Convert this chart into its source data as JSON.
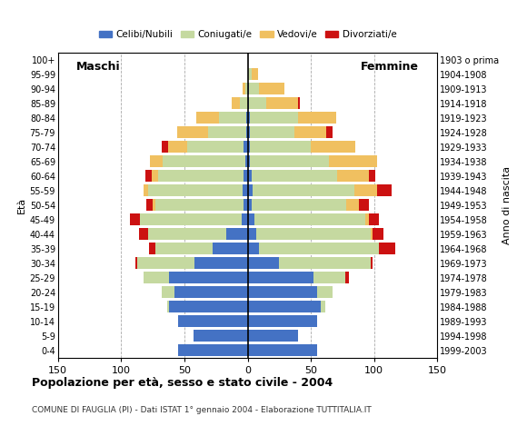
{
  "age_groups": [
    "0-4",
    "5-9",
    "10-14",
    "15-19",
    "20-24",
    "25-29",
    "30-34",
    "35-39",
    "40-44",
    "45-49",
    "50-54",
    "55-59",
    "60-64",
    "65-69",
    "70-74",
    "75-79",
    "80-84",
    "85-89",
    "90-94",
    "95-99",
    "100+"
  ],
  "birth_years": [
    "1999-2003",
    "1994-1998",
    "1989-1993",
    "1984-1988",
    "1979-1983",
    "1974-1978",
    "1969-1973",
    "1964-1968",
    "1959-1963",
    "1954-1958",
    "1949-1953",
    "1944-1948",
    "1939-1943",
    "1934-1938",
    "1929-1933",
    "1924-1928",
    "1919-1923",
    "1914-1918",
    "1909-1913",
    "1904-1908",
    "1903 o prima"
  ],
  "male_celibinubili": [
    55,
    43,
    55,
    62,
    58,
    62,
    42,
    28,
    17,
    5,
    3,
    4,
    3,
    2,
    3,
    1,
    1,
    0,
    0,
    0,
    0
  ],
  "male_coniugati": [
    0,
    0,
    0,
    2,
    10,
    20,
    45,
    45,
    62,
    80,
    70,
    75,
    68,
    65,
    45,
    30,
    22,
    6,
    2,
    0,
    0
  ],
  "male_vedovi": [
    0,
    0,
    0,
    0,
    0,
    0,
    0,
    0,
    0,
    0,
    2,
    3,
    5,
    10,
    15,
    25,
    18,
    7,
    2,
    0,
    0
  ],
  "male_divorziati": [
    0,
    0,
    0,
    0,
    0,
    0,
    2,
    5,
    7,
    8,
    5,
    0,
    5,
    0,
    5,
    0,
    0,
    0,
    0,
    0,
    0
  ],
  "female_celibinubili": [
    55,
    40,
    55,
    58,
    55,
    52,
    25,
    9,
    7,
    5,
    3,
    4,
    3,
    2,
    2,
    2,
    2,
    1,
    1,
    0,
    0
  ],
  "female_coniugati": [
    0,
    0,
    0,
    3,
    12,
    25,
    72,
    95,
    90,
    88,
    75,
    80,
    68,
    62,
    48,
    35,
    38,
    14,
    8,
    3,
    0
  ],
  "female_vedovi": [
    0,
    0,
    0,
    0,
    0,
    0,
    0,
    0,
    2,
    3,
    10,
    18,
    25,
    38,
    35,
    25,
    30,
    25,
    20,
    5,
    0
  ],
  "female_divorziati": [
    0,
    0,
    0,
    0,
    0,
    3,
    2,
    13,
    8,
    8,
    8,
    12,
    5,
    0,
    0,
    5,
    0,
    1,
    0,
    0,
    0
  ],
  "color_celibinubili": "#4472c4",
  "color_coniugati": "#c5d9a0",
  "color_vedovi": "#f0c060",
  "color_divorziati": "#cc1111",
  "title": "Popolazione per età, sesso e stato civile - 2004",
  "subtitle": "COMUNE DI FAUGLIA (PI) - Dati ISTAT 1° gennaio 2004 - Elaborazione TUTTITALIA.IT",
  "label_maschi": "Maschi",
  "label_femmine": "Femmine",
  "ylabel_left": "Età",
  "ylabel_right": "Anno di nascita",
  "xlim": 150,
  "background_color": "#ffffff",
  "grid_color": "#aaaaaa"
}
